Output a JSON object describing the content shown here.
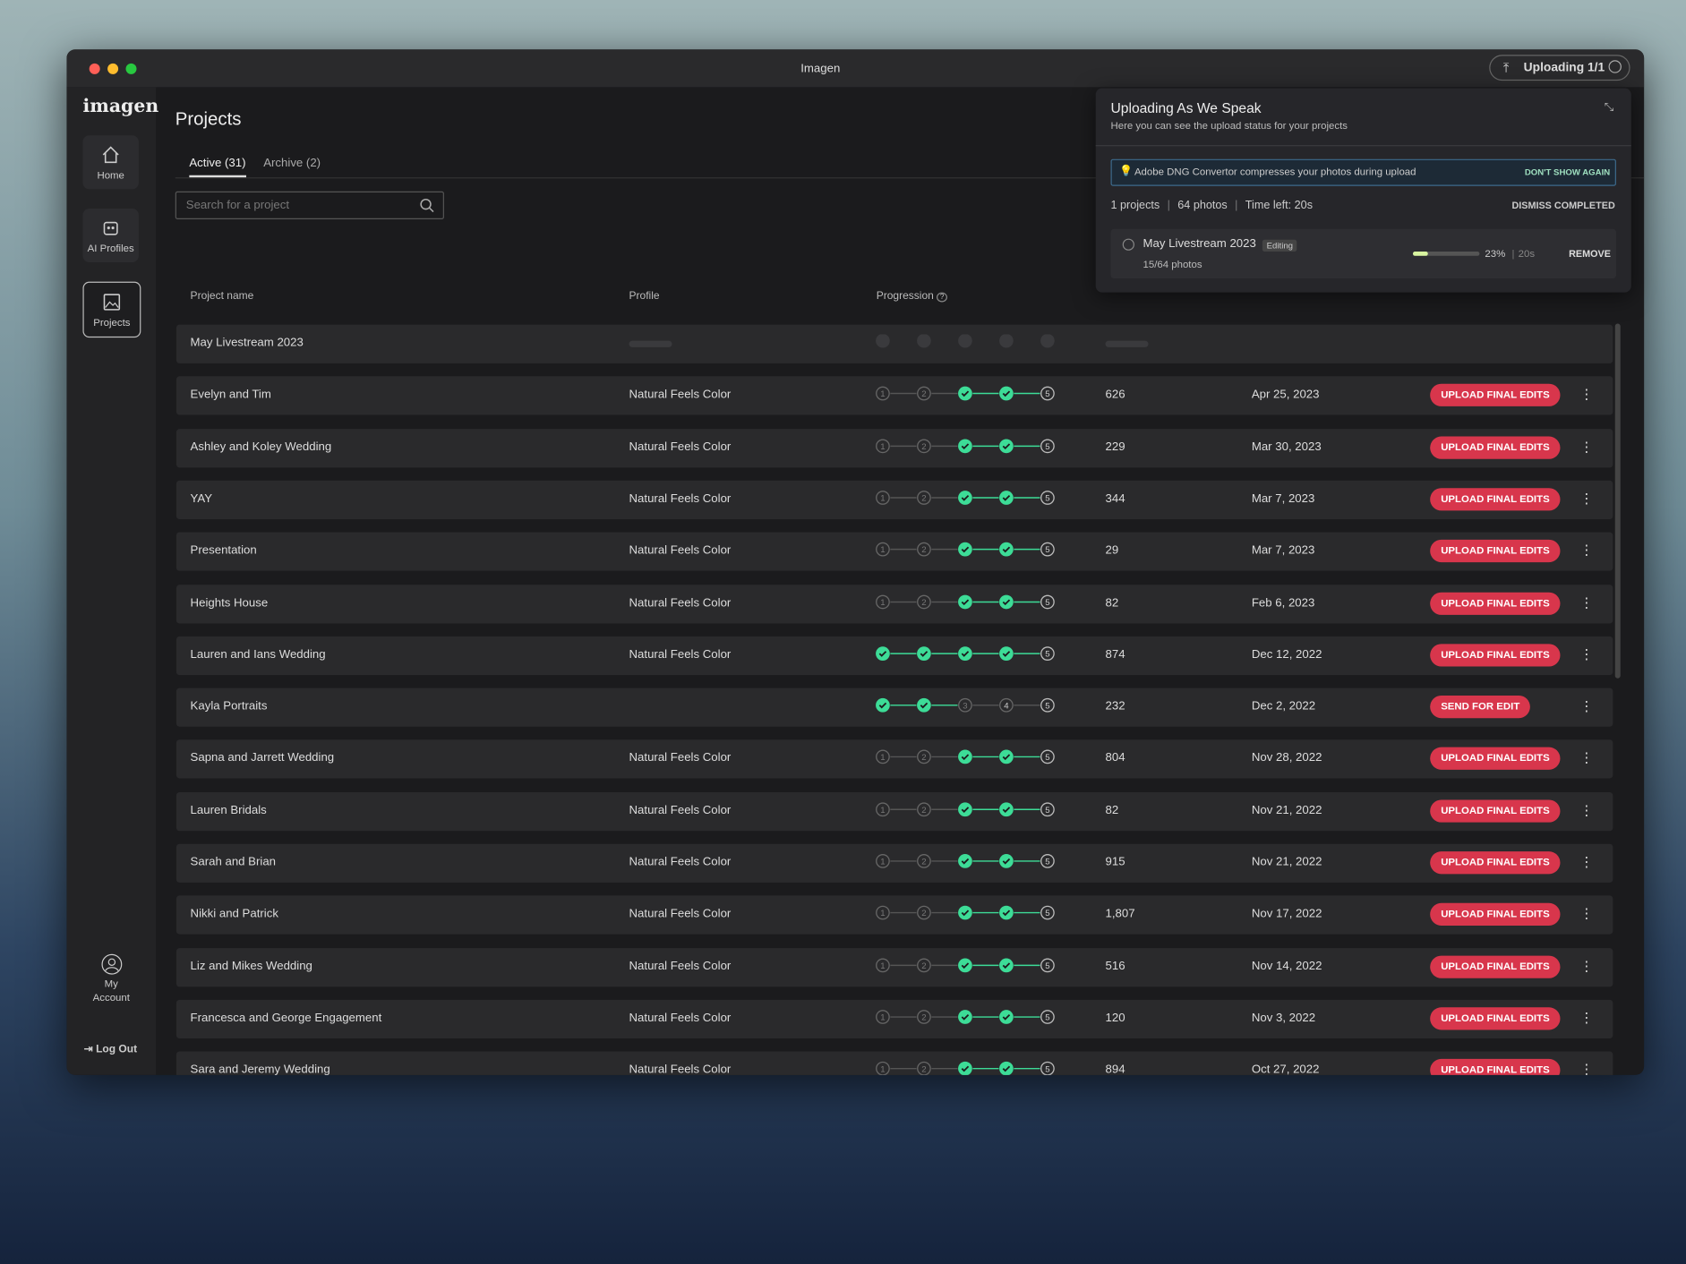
{
  "window_title": "Imagen",
  "upload_button": "Uploading 1/1",
  "sidebar": {
    "logo": "imagen",
    "nav": [
      "Home",
      "AI Profiles",
      "Projects"
    ],
    "active": 2,
    "account": [
      "My",
      "Account"
    ],
    "logout": "Log Out"
  },
  "page": {
    "title": "Projects",
    "tabs": [
      "Active (31)",
      "Archive (2)"
    ],
    "active_tab": 0,
    "search_placeholder": "Search for a project",
    "columns": [
      "Project name",
      "Profile",
      "Progression"
    ],
    "step_labels": [
      "1",
      "2",
      "3",
      "4",
      "5"
    ],
    "rows": [
      {
        "name": "May Livestream 2023",
        "profile": null,
        "progression": null,
        "photos": null,
        "date": null,
        "action": null
      },
      {
        "name": "Evelyn and Tim",
        "profile": "Natural Feels Color",
        "progression": [
          false,
          false,
          true,
          true,
          false
        ],
        "photos": "626",
        "date": "Apr 25, 2023",
        "action": "UPLOAD FINAL EDITS"
      },
      {
        "name": "Ashley and Koley Wedding",
        "profile": "Natural Feels Color",
        "progression": [
          false,
          false,
          true,
          true,
          false
        ],
        "photos": "229",
        "date": "Mar 30, 2023",
        "action": "UPLOAD FINAL EDITS"
      },
      {
        "name": "YAY",
        "profile": "Natural Feels Color",
        "progression": [
          false,
          false,
          true,
          true,
          false
        ],
        "photos": "344",
        "date": "Mar 7, 2023",
        "action": "UPLOAD FINAL EDITS"
      },
      {
        "name": "Presentation",
        "profile": "Natural Feels Color",
        "progression": [
          false,
          false,
          true,
          true,
          false
        ],
        "photos": "29",
        "date": "Mar 7, 2023",
        "action": "UPLOAD FINAL EDITS"
      },
      {
        "name": "Heights House",
        "profile": "Natural Feels Color",
        "progression": [
          false,
          false,
          true,
          true,
          false
        ],
        "photos": "82",
        "date": "Feb 6, 2023",
        "action": "UPLOAD FINAL EDITS"
      },
      {
        "name": "Lauren and Ians Wedding",
        "profile": "Natural Feels Color",
        "progression": [
          true,
          true,
          true,
          true,
          false
        ],
        "photos": "874",
        "date": "Dec 12, 2022",
        "action": "UPLOAD FINAL EDITS"
      },
      {
        "name": "Kayla Portraits",
        "profile": null,
        "progression": [
          true,
          true,
          false,
          false,
          false
        ],
        "photos": "232",
        "date": "Dec 2, 2022",
        "action": "SEND FOR EDIT"
      },
      {
        "name": "Sapna and Jarrett Wedding",
        "profile": "Natural Feels Color",
        "progression": [
          false,
          false,
          true,
          true,
          false
        ],
        "photos": "804",
        "date": "Nov 28, 2022",
        "action": "UPLOAD FINAL EDITS"
      },
      {
        "name": "Lauren Bridals",
        "profile": "Natural Feels Color",
        "progression": [
          false,
          false,
          true,
          true,
          false
        ],
        "photos": "82",
        "date": "Nov 21, 2022",
        "action": "UPLOAD FINAL EDITS"
      },
      {
        "name": "Sarah and Brian",
        "profile": "Natural Feels Color",
        "progression": [
          false,
          false,
          true,
          true,
          false
        ],
        "photos": "915",
        "date": "Nov 21, 2022",
        "action": "UPLOAD FINAL EDITS"
      },
      {
        "name": "Nikki and Patrick",
        "profile": "Natural Feels Color",
        "progression": [
          false,
          false,
          true,
          true,
          false
        ],
        "photos": "1,807",
        "date": "Nov 17, 2022",
        "action": "UPLOAD FINAL EDITS"
      },
      {
        "name": "Liz and Mikes Wedding",
        "profile": "Natural Feels Color",
        "progression": [
          false,
          false,
          true,
          true,
          false
        ],
        "photos": "516",
        "date": "Nov 14, 2022",
        "action": "UPLOAD FINAL EDITS"
      },
      {
        "name": "Francesca and George Engagement",
        "profile": "Natural Feels Color",
        "progression": [
          false,
          false,
          true,
          true,
          false
        ],
        "photos": "120",
        "date": "Nov 3, 2022",
        "action": "UPLOAD FINAL EDITS"
      },
      {
        "name": "Sara and Jeremy Wedding",
        "profile": "Natural Feels Color",
        "progression": [
          false,
          false,
          true,
          true,
          false
        ],
        "photos": "894",
        "date": "Oct 27, 2022",
        "action": "UPLOAD FINAL EDITS"
      }
    ]
  },
  "upload_panel": {
    "title": "Uploading As We Speak",
    "subtitle": "Here you can see the upload status for your projects",
    "notice": "Adobe DNG Convertor compresses your photos during upload",
    "notice_action": "DON'T SHOW AGAIN",
    "stats": [
      "1 projects",
      "64 photos",
      "Time left: 20s"
    ],
    "dismiss": "DISMISS COMPLETED",
    "item": {
      "name": "May Livestream 2023",
      "badge": "Editing",
      "photos": "15/64 photos",
      "progress": 23,
      "progress_label": "23%",
      "time": "20s",
      "remove": "REMOVE"
    }
  }
}
